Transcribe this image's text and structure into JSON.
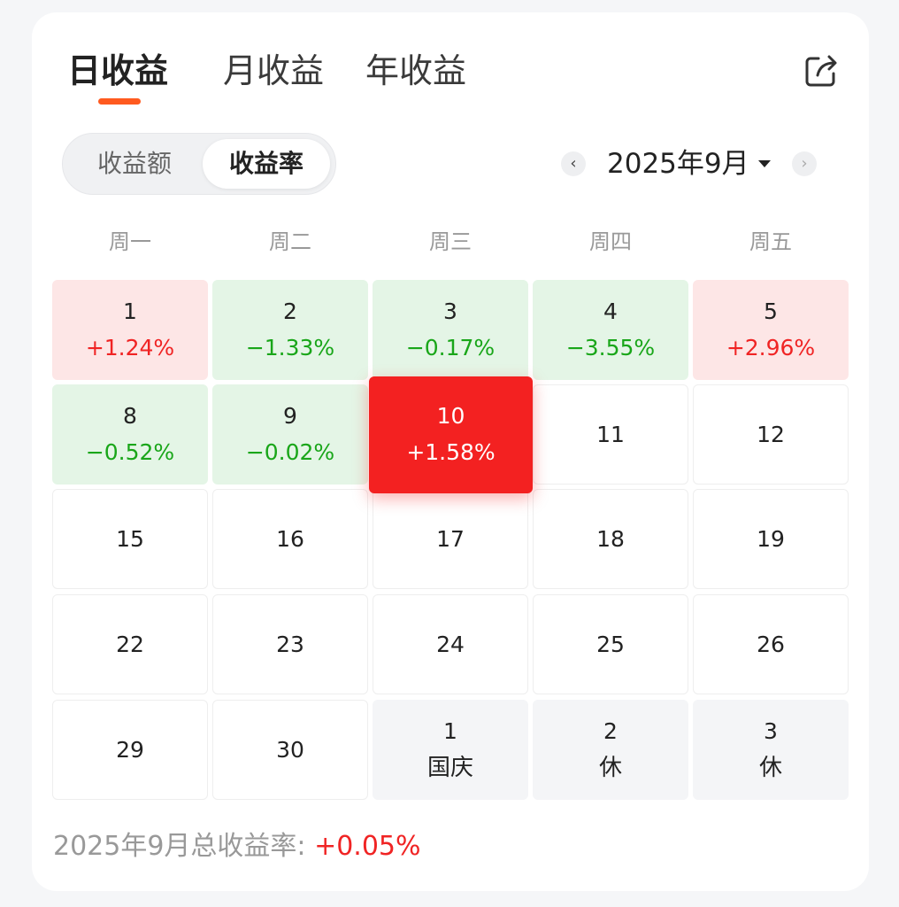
{
  "tabs": [
    {
      "label": "日收益",
      "active": true
    },
    {
      "label": "月收益",
      "active": false
    },
    {
      "label": "年收益",
      "active": false
    }
  ],
  "share_icon": "share-icon",
  "segment": {
    "options": [
      "收益额",
      "收益率"
    ],
    "selected": "收益率"
  },
  "month_nav": {
    "prev_icon": "chevron-left-icon",
    "label": "2025年9月",
    "dropdown_icon": "caret-down-icon",
    "next_icon": "chevron-right-icon"
  },
  "weekdays": [
    "周一",
    "周二",
    "周三",
    "周四",
    "周五"
  ],
  "days": [
    {
      "day": "1",
      "value": "+1.24%",
      "trend": "up"
    },
    {
      "day": "2",
      "value": "−1.33%",
      "trend": "down"
    },
    {
      "day": "3",
      "value": "−0.17%",
      "trend": "down"
    },
    {
      "day": "4",
      "value": "−3.55%",
      "trend": "down"
    },
    {
      "day": "5",
      "value": "+2.96%",
      "trend": "up"
    },
    {
      "day": "8",
      "value": "−0.52%",
      "trend": "down"
    },
    {
      "day": "9",
      "value": "−0.02%",
      "trend": "down"
    },
    {
      "day": "10",
      "value": "+1.58%",
      "trend": "selected"
    },
    {
      "day": "11",
      "value": "",
      "trend": "none"
    },
    {
      "day": "12",
      "value": "",
      "trend": "none"
    },
    {
      "day": "15",
      "value": "",
      "trend": "none"
    },
    {
      "day": "16",
      "value": "",
      "trend": "none"
    },
    {
      "day": "17",
      "value": "",
      "trend": "none"
    },
    {
      "day": "18",
      "value": "",
      "trend": "none"
    },
    {
      "day": "19",
      "value": "",
      "trend": "none"
    },
    {
      "day": "22",
      "value": "",
      "trend": "none"
    },
    {
      "day": "23",
      "value": "",
      "trend": "none"
    },
    {
      "day": "24",
      "value": "",
      "trend": "none"
    },
    {
      "day": "25",
      "value": "",
      "trend": "none"
    },
    {
      "day": "26",
      "value": "",
      "trend": "none"
    },
    {
      "day": "29",
      "value": "",
      "trend": "none"
    },
    {
      "day": "30",
      "value": "",
      "trend": "none"
    },
    {
      "day": "1",
      "value": "国庆",
      "trend": "holiday"
    },
    {
      "day": "2",
      "value": "休",
      "trend": "holiday"
    },
    {
      "day": "3",
      "value": "休",
      "trend": "holiday"
    }
  ],
  "summary": {
    "label": "2025年9月总收益率: ",
    "value": "+0.05%"
  },
  "colors": {
    "accent": "#ff5a1f",
    "up": "#f02424",
    "down": "#19a619",
    "up_bg": "#fde6e6",
    "down_bg": "#e4f5e6"
  }
}
